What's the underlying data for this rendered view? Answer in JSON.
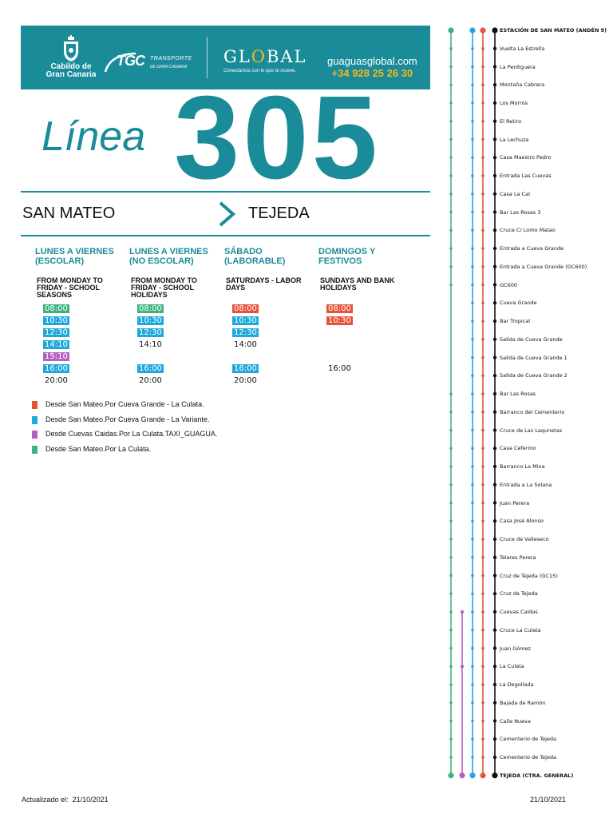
{
  "header": {
    "cabildo_lines": [
      "Cabildo de",
      "Gran Canaria"
    ],
    "tgc_word": "TGC",
    "tgc_text1": "TRANSPORTE",
    "tgc_text2": "DE GRAN CANARIA",
    "global_pre": "GL",
    "global_o": "O",
    "global_post": "BAL",
    "global_tagline": "Conectamos con lo que te mueve.",
    "website": "guaguasglobal.com",
    "phone": "+34 928 25 26 30",
    "brand_color": "#1a8b99",
    "accent_color": "#f5b81c"
  },
  "title": {
    "line_word": "Línea",
    "line_number": "305"
  },
  "route": {
    "from": "SAN MATEO",
    "to": "TEJEDA",
    "arrow_icon": "chevron-right-icon"
  },
  "schedule": [
    {
      "heading": "LUNES A VIERNES (ESCOLAR)",
      "english": "FROM MONDAY TO FRIDAY - SCHOOL SEASONS",
      "times": [
        {
          "t": "08:00",
          "c": "green"
        },
        {
          "t": "10:30",
          "c": "blue"
        },
        {
          "t": "12:30",
          "c": "blue"
        },
        {
          "t": "14:10",
          "c": "blue"
        },
        {
          "t": "15:10",
          "c": "purple"
        },
        {
          "t": "16:00",
          "c": "blue"
        },
        {
          "t": "20:00",
          "c": "none"
        }
      ]
    },
    {
      "heading": "LUNES A VIERNES (NO ESCOLAR)",
      "english": "FROM MONDAY TO FRIDAY - SCHOOL HOLIDAYS",
      "times": [
        {
          "t": "08:00",
          "c": "green"
        },
        {
          "t": "10:30",
          "c": "blue"
        },
        {
          "t": "12:30",
          "c": "blue"
        },
        {
          "t": "14:10",
          "c": "none"
        },
        {
          "t": "",
          "c": "empty"
        },
        {
          "t": "16:00",
          "c": "blue"
        },
        {
          "t": "20:00",
          "c": "none"
        }
      ]
    },
    {
      "heading": "SÁBADO (LABORABLE)",
      "english": "SATURDAYS - LABOR DAYS",
      "times": [
        {
          "t": "08:00",
          "c": "red"
        },
        {
          "t": "10:30",
          "c": "blue"
        },
        {
          "t": "12:30",
          "c": "blue"
        },
        {
          "t": "14:00",
          "c": "none"
        },
        {
          "t": "",
          "c": "empty"
        },
        {
          "t": "16:00",
          "c": "blue"
        },
        {
          "t": "20:00",
          "c": "none"
        }
      ]
    },
    {
      "heading": "DOMINGOS Y FESTIVOS",
      "english": "SUNDAYS AND BANK HOLIDAYS",
      "times": [
        {
          "t": "08:00",
          "c": "red"
        },
        {
          "t": "10:30",
          "c": "red"
        },
        {
          "t": "",
          "c": "empty"
        },
        {
          "t": "",
          "c": "empty"
        },
        {
          "t": "",
          "c": "empty"
        },
        {
          "t": "16:00",
          "c": "none"
        }
      ]
    }
  ],
  "colors": {
    "red": "#e5543a",
    "blue": "#1ea8dc",
    "purple": "#b462c2",
    "green": "#3fb37f",
    "black": "#111111"
  },
  "legend": [
    {
      "color": "red",
      "text": "Desde San Mateo.Por Cueva Grande - La Culata."
    },
    {
      "color": "blue",
      "text": "Desde San Mateo.Por Cueva Grande - La Variante."
    },
    {
      "color": "purple",
      "text": "Desde Cuevas Caidas.Por La Culata.TAXI_GUAGUA."
    },
    {
      "color": "green",
      "text": "Desde San Mateo.Por La Culata."
    }
  ],
  "footer": {
    "updated_label": "Actualizado el:",
    "updated_date": "21/10/2021",
    "right_date": "21/10/2021"
  },
  "stops": [
    {
      "name": "ESTACIÓN DE SAN MATEO (ANDÉN 9)",
      "bold": true,
      "g": 1,
      "b": 1,
      "r": 1,
      "p": 0
    },
    {
      "name": "Vuelta La Estrella",
      "g": 1,
      "b": 1,
      "r": 1,
      "p": 0
    },
    {
      "name": "La Perdiguera",
      "g": 1,
      "b": 1,
      "r": 1,
      "p": 0
    },
    {
      "name": "Montaña Cabrera",
      "g": 1,
      "b": 1,
      "r": 1,
      "p": 0
    },
    {
      "name": "Los Morros",
      "g": 1,
      "b": 1,
      "r": 1,
      "p": 0
    },
    {
      "name": "El Retiro",
      "g": 1,
      "b": 1,
      "r": 1,
      "p": 0
    },
    {
      "name": "La Lechuza",
      "g": 1,
      "b": 1,
      "r": 1,
      "p": 0
    },
    {
      "name": "Casa Maestro Pedro",
      "g": 1,
      "b": 1,
      "r": 1,
      "p": 0
    },
    {
      "name": "Entrada Las Cuevas",
      "g": 1,
      "b": 1,
      "r": 1,
      "p": 0
    },
    {
      "name": "Casa La Cal",
      "g": 1,
      "b": 1,
      "r": 1,
      "p": 0
    },
    {
      "name": "Bar Las Rosas 3",
      "g": 1,
      "b": 1,
      "r": 1,
      "p": 0
    },
    {
      "name": "Cruce C/ Lomo Matao",
      "g": 1,
      "b": 1,
      "r": 1,
      "p": 0
    },
    {
      "name": "Entrada a Cueva Grande",
      "g": 1,
      "b": 1,
      "r": 1,
      "p": 0
    },
    {
      "name": "Entrada a Cueva Grande (GC600)",
      "g": 1,
      "b": 1,
      "r": 1,
      "p": 0
    },
    {
      "name": "GC600",
      "g": 1,
      "b": 1,
      "r": 1,
      "p": 0
    },
    {
      "name": "Cueva Grande",
      "g": 0,
      "b": 1,
      "r": 1,
      "p": 0
    },
    {
      "name": "Bar Tropical",
      "g": 0,
      "b": 1,
      "r": 1,
      "p": 0
    },
    {
      "name": "Salida de Cueva Grande",
      "g": 0,
      "b": 1,
      "r": 1,
      "p": 0
    },
    {
      "name": "Salida de Cueva Grande 1",
      "g": 0,
      "b": 1,
      "r": 1,
      "p": 0
    },
    {
      "name": "Salida de Cueva Grande 2",
      "g": 0,
      "b": 1,
      "r": 1,
      "p": 0
    },
    {
      "name": "Bar Las Rosas",
      "g": 1,
      "b": 1,
      "r": 1,
      "p": 0
    },
    {
      "name": "Barranco del Cementerio",
      "g": 1,
      "b": 1,
      "r": 1,
      "p": 0
    },
    {
      "name": "Cruce de Las Laqunetas",
      "g": 1,
      "b": 1,
      "r": 1,
      "p": 0
    },
    {
      "name": "Casa Ceferino",
      "g": 1,
      "b": 1,
      "r": 1,
      "p": 0
    },
    {
      "name": "Barranco La Mina",
      "g": 1,
      "b": 1,
      "r": 1,
      "p": 0
    },
    {
      "name": "Entrada a La Solana",
      "g": 1,
      "b": 1,
      "r": 1,
      "p": 0
    },
    {
      "name": "Juan Perera",
      "g": 1,
      "b": 1,
      "r": 1,
      "p": 0
    },
    {
      "name": "Casa José Alonso",
      "g": 1,
      "b": 1,
      "r": 1,
      "p": 0
    },
    {
      "name": "Cruce de Valleseco",
      "g": 1,
      "b": 1,
      "r": 1,
      "p": 0
    },
    {
      "name": "Telares Perera",
      "g": 1,
      "b": 1,
      "r": 1,
      "p": 0
    },
    {
      "name": "Cruz de Tejeda (GC15)",
      "g": 1,
      "b": 1,
      "r": 1,
      "p": 0
    },
    {
      "name": "Cruz de Tejeda",
      "g": 1,
      "b": 1,
      "r": 1,
      "p": 0
    },
    {
      "name": "Cuevas Caídas",
      "g": 1,
      "b": 1,
      "r": 1,
      "p": 1
    },
    {
      "name": "Cruce La Culata",
      "g": 1,
      "b": 1,
      "r": 1,
      "p": 0
    },
    {
      "name": "Juan Gómez",
      "g": 1,
      "b": 1,
      "r": 1,
      "p": 0
    },
    {
      "name": "La Culata",
      "g": 1,
      "b": 1,
      "r": 1,
      "p": 1
    },
    {
      "name": "La Degollada",
      "g": 1,
      "b": 1,
      "r": 1,
      "p": 0
    },
    {
      "name": "Bajada de Ramón",
      "g": 1,
      "b": 1,
      "r": 1,
      "p": 0
    },
    {
      "name": "Calle Nueva",
      "g": 1,
      "b": 1,
      "r": 1,
      "p": 0
    },
    {
      "name": "Cementerio de Tejeda",
      "g": 1,
      "b": 1,
      "r": 1,
      "p": 0
    },
    {
      "name": "Cementerio de Tejeda",
      "g": 1,
      "b": 1,
      "r": 1,
      "p": 0
    },
    {
      "name": "TEJEDA (CTRA. GENERAL)",
      "bold": true,
      "g": 1,
      "b": 1,
      "r": 1,
      "p": 1
    }
  ]
}
